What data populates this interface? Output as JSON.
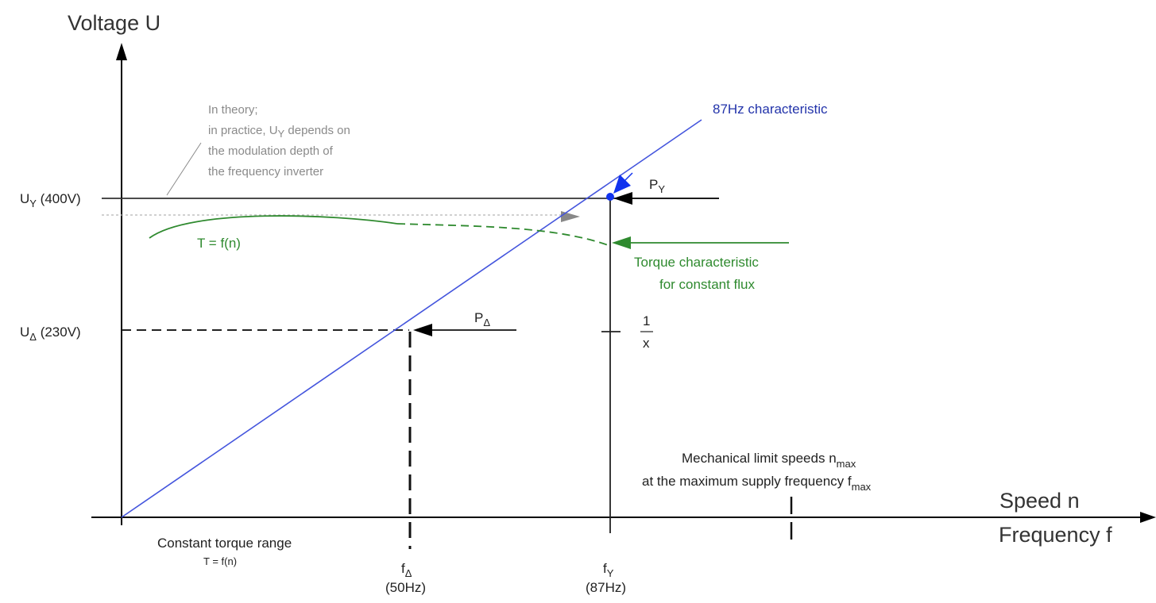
{
  "axes": {
    "y_title": "Voltage U",
    "x_title_top": "Speed n",
    "x_title_bottom": "Frequency f"
  },
  "voltage_labels": {
    "u_y_main": "U",
    "u_y_sub": "Y",
    "u_y_value": " (400V)",
    "u_delta_main": "U",
    "u_delta_sub": "Δ",
    "u_delta_value": " (230V)"
  },
  "note": {
    "line1": "In theory;",
    "line2_pre": "in practice, U",
    "line2_sub": "Y",
    "line2_post": " depends on",
    "line3": "the modulation depth of",
    "line4": "the frequency inverter"
  },
  "characteristic_label": "87Hz characteristic",
  "power_labels": {
    "p_y_main": "P",
    "p_y_sub": "Y",
    "p_delta_main": "P",
    "p_delta_sub": "Δ"
  },
  "torque": {
    "curve_label": "T = f(n)",
    "char_line1": "Torque characteristic",
    "char_line2": "for constant flux"
  },
  "ratio": {
    "numerator": "1",
    "denominator": "x"
  },
  "mechanical": {
    "line1_pre": "Mechanical limit speeds n",
    "line1_sub": "max",
    "line2_pre": "at the maximum supply frequency f",
    "line2_sub": "max"
  },
  "range": {
    "line1": "Constant torque range",
    "line2": "T = f(n)"
  },
  "frequencies": {
    "f_delta_main": "f",
    "f_delta_sub": "Δ",
    "f_delta_value": "(50Hz)",
    "f_y_main": "f",
    "f_y_sub": "Y",
    "f_y_value": "(87Hz)"
  },
  "colors": {
    "axis": "#000000",
    "characteristic": "#4455dd",
    "torque": "#2f8a2f",
    "note": "#8a8a8a",
    "point": "#1133ee"
  }
}
